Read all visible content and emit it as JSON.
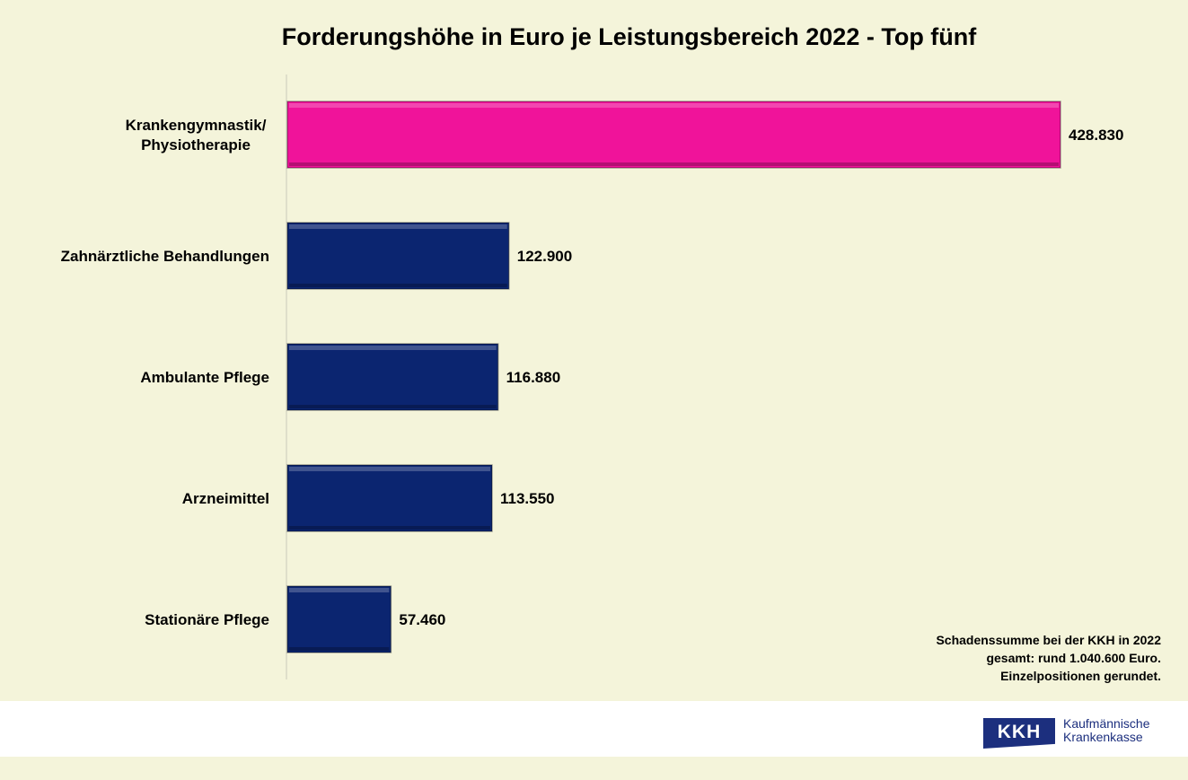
{
  "chart_data": {
    "type": "bar",
    "orientation": "horizontal",
    "title": "Forderungshöhe in Euro je Leistungsbereich 2022 - Top fünf",
    "categories": [
      [
        "Krankengymnastik/",
        "Physiotherapie"
      ],
      [
        "Zahnärztliche Behandlungen"
      ],
      [
        "Ambulante Pflege"
      ],
      [
        "Arzneimittel"
      ],
      [
        "Stationäre Pflege"
      ]
    ],
    "values": [
      428830,
      122900,
      116880,
      113550,
      57460
    ],
    "value_labels": [
      "428.830",
      "122.900",
      "116.880",
      "113.550",
      "57.460"
    ],
    "colors": [
      "#f0139a",
      "#0b2570",
      "#0b2570",
      "#0b2570",
      "#0b2570"
    ],
    "xlim": [
      0,
      428830
    ],
    "xlabel": "",
    "ylabel": "",
    "grid": false
  },
  "note": [
    "Schadenssumme bei der KKH in 2022",
    "gesamt: rund 1.040.600 Euro.",
    "Einzelpositionen gerundet."
  ],
  "logo": {
    "mark": "KKH",
    "line1": "Kaufmännische",
    "line2": "Krankenkasse"
  }
}
